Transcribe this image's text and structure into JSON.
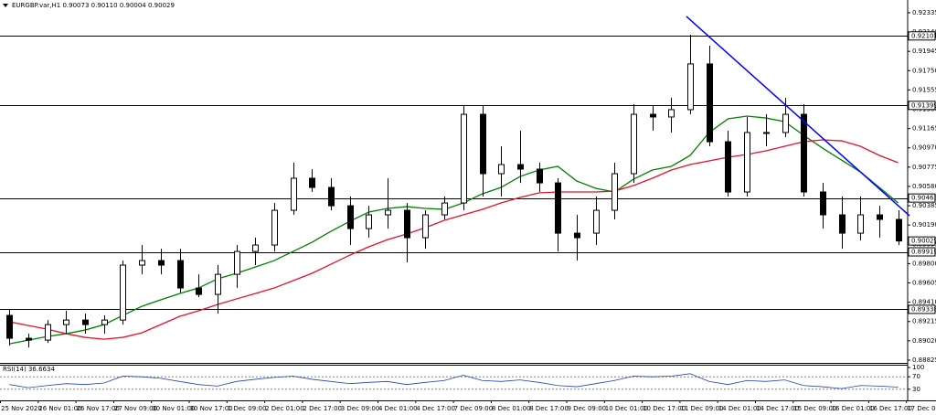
{
  "chart_data": [
    {
      "type": "candlestick",
      "title": "EURGBP.var,H1  0.90073 0.90110 0.90004 0.90029",
      "time_labels": [
        "25 Nov 2020",
        "26 Nov 01:00",
        "26 Nov 17:00",
        "27 Nov 09:00",
        "30 Nov 01:00",
        "30 Nov 17:00",
        "1 Dec 09:00",
        "2 Dec 01:00",
        "2 Dec 17:00",
        "3 Dec 09:00",
        "4 Dec 01:00",
        "4 Dec 17:00",
        "7 Dec 09:00",
        "8 Dec 01:00",
        "8 Dec 17:00",
        "9 Dec 09:00",
        "10 Dec 01:00",
        "10 Dec 17:00",
        "11 Dec 09:00",
        "14 Dec 01:00",
        "14 Dec 17:00",
        "15 Dec 09:00",
        "16 Dec 01:00",
        "16 Dec 17:00",
        "17 Dec 09:00"
      ],
      "open": [
        0.89277,
        0.89046,
        0.89027,
        0.89184,
        0.8923,
        0.89184,
        0.8923,
        0.89785,
        0.89831,
        0.89831,
        0.89554,
        0.89489,
        0.89692,
        0.89923,
        0.89988,
        0.90339,
        0.90663,
        0.9057,
        0.90385,
        0.90154,
        0.90293,
        0.90339,
        0.90062,
        0.90293,
        0.90413,
        0.91309,
        0.90709,
        0.90801,
        0.90755,
        0.90616,
        0.90108,
        0.90108,
        0.90339,
        0.90709,
        0.91309,
        0.91282,
        0.91356,
        0.91818,
        0.91032,
        0.90524,
        0.91125,
        0.91125,
        0.91309,
        0.90524,
        0.90293,
        0.90108,
        0.90293,
        0.90247
      ],
      "high": [
        0.89341,
        0.89092,
        0.8923,
        0.89323,
        0.89295,
        0.89277,
        0.89831,
        0.89988,
        0.89951,
        0.89951,
        0.89692,
        0.89785,
        0.89988,
        0.90062,
        0.90413,
        0.9082,
        0.90755,
        0.90663,
        0.90478,
        0.90385,
        0.90663,
        0.90413,
        0.90339,
        0.90478,
        0.91392,
        0.91392,
        0.90986,
        0.91143,
        0.9082,
        0.90663,
        0.90293,
        0.90478,
        0.9082,
        0.91411,
        0.91392,
        0.91476,
        0.92113,
        0.92002,
        0.91143,
        0.91282,
        0.91309,
        0.91476,
        0.91411,
        0.90616,
        0.90478,
        0.90478,
        0.90385,
        0.90339
      ],
      "low": [
        0.88972,
        0.88953,
        0.88999,
        0.89092,
        0.89092,
        0.89092,
        0.89184,
        0.89692,
        0.89692,
        0.89507,
        0.89462,
        0.89295,
        0.89554,
        0.89785,
        0.89923,
        0.90293,
        0.90524,
        0.90339,
        0.89988,
        0.90062,
        0.90154,
        0.89812,
        0.89951,
        0.90247,
        0.90339,
        0.90478,
        0.90478,
        0.90616,
        0.90524,
        0.89923,
        0.89831,
        0.89988,
        0.90247,
        0.90616,
        0.91143,
        0.91125,
        0.91309,
        0.90986,
        0.90478,
        0.90478,
        0.90986,
        0.91078,
        0.90478,
        0.90154,
        0.89951,
        0.90034,
        0.90062,
        0.89988
      ],
      "close": [
        0.89046,
        0.89027,
        0.89184,
        0.8923,
        0.89184,
        0.8923,
        0.89785,
        0.89831,
        0.89785,
        0.89554,
        0.89489,
        0.89692,
        0.89923,
        0.89988,
        0.90339,
        0.90663,
        0.9057,
        0.90385,
        0.90154,
        0.90293,
        0.90339,
        0.90062,
        0.90293,
        0.90413,
        0.91309,
        0.90709,
        0.90801,
        0.90755,
        0.90616,
        0.90108,
        0.90062,
        0.90339,
        0.90709,
        0.91309,
        0.91282,
        0.91356,
        0.91818,
        0.91032,
        0.90524,
        0.91125,
        0.91125,
        0.91309,
        0.90524,
        0.90293,
        0.90108,
        0.90293,
        0.90247,
        0.90029
      ],
      "series": [
        {
          "color": "#008000",
          "values": [
            0.8899,
            0.89027,
            0.89064,
            0.89092,
            0.89129,
            0.89184,
            0.89277,
            0.89369,
            0.89434,
            0.89498,
            0.89554,
            0.89646,
            0.89702,
            0.89766,
            0.89831,
            0.89923,
            0.90016,
            0.90127,
            0.90228,
            0.90321,
            0.90358,
            0.90376,
            0.90358,
            0.90348,
            0.90413,
            0.90505,
            0.9057,
            0.90681,
            0.90746,
            0.90783,
            0.90635,
            0.90561,
            0.90524,
            0.90653,
            0.90746,
            0.90783,
            0.90894,
            0.91125,
            0.91263,
            0.91291,
            0.91272,
            0.91235,
            0.91097,
            0.90967,
            0.90847,
            0.90727,
            0.9057,
            0.90413
          ]
        },
        {
          "color": "#e8102a",
          "values": [
            0.89212,
            0.89175,
            0.89138,
            0.89092,
            0.89055,
            0.89036,
            0.89055,
            0.89101,
            0.89184,
            0.89267,
            0.89323,
            0.89387,
            0.89443,
            0.89498,
            0.89554,
            0.89628,
            0.89702,
            0.89794,
            0.89886,
            0.8997,
            0.90043,
            0.90099,
            0.90164,
            0.90238,
            0.90293,
            0.90348,
            0.90413,
            0.90469,
            0.90515,
            0.90524,
            0.90524,
            0.90524,
            0.90533,
            0.90589,
            0.90663,
            0.90746,
            0.90801,
            0.90838,
            0.90875,
            0.90903,
            0.9094,
            0.90986,
            0.91032,
            0.91051,
            0.91041,
            0.90986,
            0.90894,
            0.9082
          ]
        }
      ],
      "levels": [
        0.92101,
        0.91399,
        0.90463,
        0.89919,
        0.89338
      ],
      "last_price": 0.90029,
      "trendline": {
        "color": "#0000ff",
        "x": [
          35.8,
          47.6
        ],
        "y": [
          0.92298,
          0.90283
        ]
      },
      "ylim": [
        0.88797,
        0.92464
      ],
      "yticks": [
        0.92335,
        {
          "value": 0.9214,
          "label": "0.92140"
        },
        0.91945,
        {
          "value": 0.9175,
          "label": "0.91750"
        },
        0.91555,
        {
          "value": 0.9136,
          "label": "0.91360"
        },
        0.91165,
        {
          "value": 0.9097,
          "label": "0.90970"
        },
        0.90775,
        {
          "value": 0.9058,
          "label": "0.90580"
        },
        0.90385,
        {
          "value": 0.9019,
          "label": "0.90190"
        },
        0.89995,
        {
          "value": 0.898,
          "label": "0.89800"
        },
        0.89605,
        {
          "value": 0.8941,
          "label": "0.89410"
        },
        0.89215,
        {
          "value": 0.8902,
          "label": "0.89020"
        },
        0.88825
      ]
    },
    {
      "type": "line",
      "title": "RSI(14) 36.6634",
      "series": [
        {
          "color": "#2040c0",
          "values": [
            45,
            35,
            42,
            48,
            45,
            50,
            72,
            70,
            65,
            55,
            45,
            40,
            55,
            62,
            68,
            72,
            62,
            55,
            48,
            52,
            55,
            45,
            52,
            58,
            75,
            58,
            55,
            60,
            52,
            42,
            38,
            48,
            58,
            72,
            70,
            72,
            80,
            55,
            45,
            58,
            55,
            60,
            42,
            38,
            32,
            42,
            40,
            36.6634
          ]
        }
      ],
      "levels": [
        70,
        30
      ],
      "ylim": [
        0,
        100
      ],
      "yticks": [
        100,
        70,
        30
      ]
    }
  ]
}
